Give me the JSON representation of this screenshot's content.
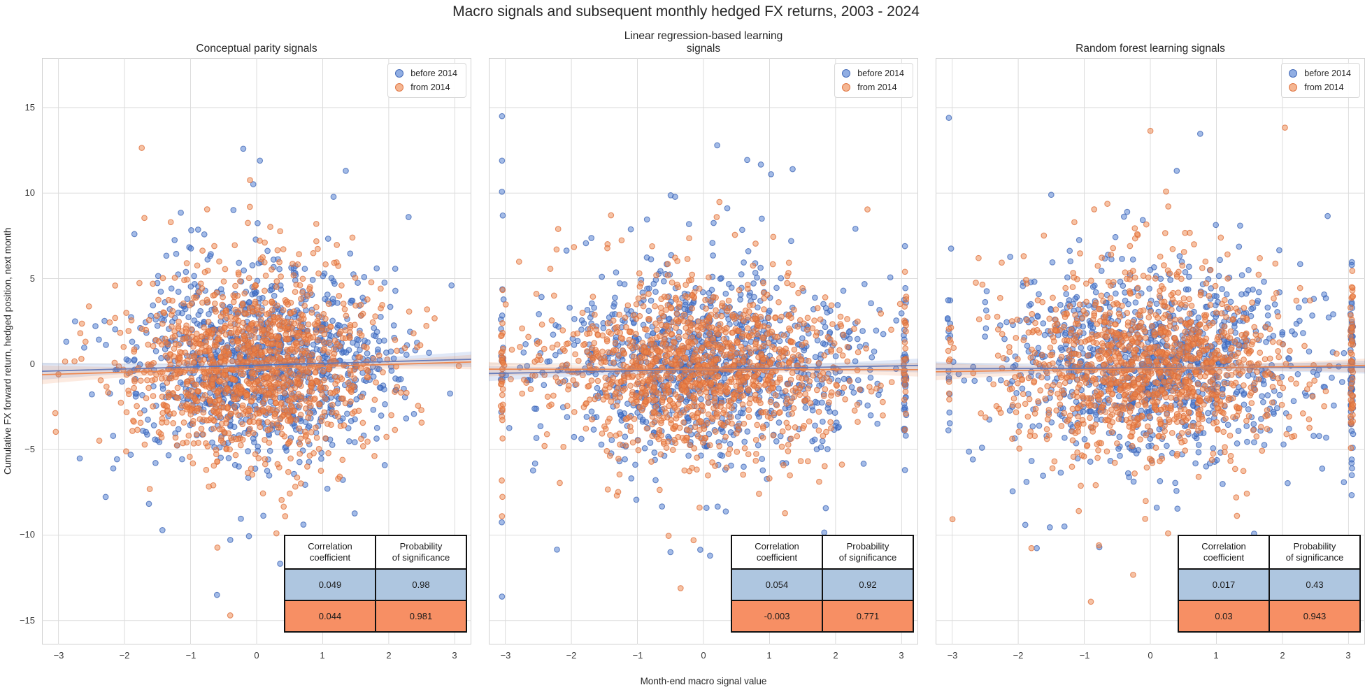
{
  "figure": {
    "title": "Macro signals and subsequent monthly hedged FX returns, 2003 - 2024",
    "xlabel": "Month-end macro signal value",
    "ylabel": "Cumulative FX forward return, hedged position, next month"
  },
  "colors": {
    "blue": "#4878d0",
    "blue_edge": "#3c64b4",
    "orange": "#ee854a",
    "orange_edge": "#de6e3a",
    "table_blue": "#aec6e0",
    "table_orange": "#f78f64",
    "grid": "#dcdcdc",
    "spine": "#d0d0d0"
  },
  "legend": {
    "items": [
      {
        "label": "before 2014",
        "series": "before 2014"
      },
      {
        "label": "from 2014",
        "series": "from 2014"
      }
    ]
  },
  "chart_data": [
    {
      "type": "scatter",
      "title": "Conceptual parity signals",
      "x_ticks": [
        -3,
        -2,
        -1,
        0,
        1,
        2,
        3
      ],
      "y_ticks": [
        15,
        10,
        5,
        0,
        -5,
        -10,
        -15
      ],
      "xlim": [
        -3.25,
        3.25
      ],
      "ylim": [
        -16.4,
        17.9
      ],
      "grid": true,
      "legend_position": "upper right",
      "series": [
        {
          "name": "before 2014",
          "color_key": "blue",
          "n": 1050,
          "gen": {
            "x_mean": 0.1,
            "x_sd": 0.98,
            "p_edge_lo": 0,
            "p_edge_hi": 0,
            "y_mean": 0.05,
            "y_sd_mix": [
              2.4,
              4.0,
              6.0
            ]
          },
          "outliers": [
            [
              0.05,
              11.9
            ],
            [
              1.35,
              11.3
            ],
            [
              2.3,
              8.6
            ],
            [
              -1.85,
              7.6
            ],
            [
              -0.6,
              -13.5
            ],
            [
              0.85,
              -11.6
            ],
            [
              1.1,
              -10.9
            ],
            [
              2.95,
              4.6
            ]
          ]
        },
        {
          "name": "from 2014",
          "color_key": "orange",
          "n": 1250,
          "gen": {
            "x_mean": -0.05,
            "x_sd": 0.95,
            "p_edge_lo": 0.001,
            "p_edge_hi": 0.001,
            "y_mean": -0.25,
            "y_sd_mix": [
              2.3,
              3.8,
              5.5
            ]
          },
          "outliers": [
            [
              -0.75,
              9.05
            ],
            [
              -1.3,
              8.3
            ],
            [
              1.45,
              7.4
            ],
            [
              -0.4,
              -14.7
            ],
            [
              0.3,
              -9.9
            ],
            [
              -3.0,
              -0.6
            ],
            [
              -2.9,
              0.15
            ]
          ]
        }
      ],
      "regression": [
        {
          "series": "before 2014",
          "color_key": "blue",
          "y_start": -0.42,
          "y_end": 0.28,
          "band_w_start": 0.5,
          "band_w_mid": 0.16,
          "band_w_end": 0.45
        },
        {
          "series": "from 2014",
          "color_key": "orange",
          "y_start": -0.62,
          "y_end": 0.12,
          "band_w_start": 0.55,
          "band_w_mid": 0.15,
          "band_w_end": 0.42
        }
      ],
      "table": {
        "headers": [
          "Correlation\ncoefficient",
          "Probability\nof significance"
        ],
        "rows": [
          {
            "series": "before 2014",
            "values": [
              "0.049",
              "0.98"
            ]
          },
          {
            "series": "from 2014",
            "values": [
              "0.044",
              "0.981"
            ]
          }
        ]
      }
    },
    {
      "type": "scatter",
      "title": "Linear regression-based learning\nsignals",
      "x_ticks": [
        -3,
        -2,
        -1,
        0,
        1,
        2,
        3
      ],
      "y_ticks": [
        15,
        10,
        5,
        0,
        -5,
        -10,
        -15
      ],
      "xlim": [
        -3.25,
        3.25
      ],
      "ylim": [
        -16.4,
        17.9
      ],
      "grid": true,
      "legend_position": "upper right",
      "series": [
        {
          "name": "before 2014",
          "color_key": "blue",
          "n": 1050,
          "gen": {
            "x_mean": 0.0,
            "x_sd": 1.2,
            "p_edge_lo": 0.02,
            "p_edge_hi": 0.03,
            "y_mean": 0.0,
            "y_sd_mix": [
              2.5,
              4.2,
              6.2
            ]
          },
          "outliers": [
            [
              -3.05,
              14.5
            ],
            [
              -3.05,
              11.9
            ],
            [
              1.35,
              11.4
            ],
            [
              -3.05,
              -13.6
            ],
            [
              -0.5,
              -11.0
            ],
            [
              0.7,
              -10.4
            ],
            [
              3.05,
              6.9
            ],
            [
              3.05,
              -6.2
            ]
          ]
        },
        {
          "name": "from 2014",
          "color_key": "orange",
          "n": 1250,
          "gen": {
            "x_mean": -0.05,
            "x_sd": 1.15,
            "p_edge_lo": 0.025,
            "p_edge_hi": 0.02,
            "y_mean": -0.3,
            "y_sd_mix": [
              2.3,
              3.8,
              5.2
            ]
          },
          "outliers": [
            [
              -1.4,
              8.7
            ],
            [
              0.2,
              8.6
            ],
            [
              -2.2,
              7.9
            ],
            [
              -0.15,
              -10.3
            ],
            [
              -3.05,
              -8.9
            ],
            [
              3.05,
              5.4
            ]
          ]
        }
      ],
      "regression": [
        {
          "series": "before 2014",
          "color_key": "blue",
          "y_start": -0.55,
          "y_end": -0.08,
          "band_w_start": 0.45,
          "band_w_mid": 0.15,
          "band_w_end": 0.4
        },
        {
          "series": "from 2014",
          "color_key": "orange",
          "y_start": -0.3,
          "y_end": -0.33,
          "band_w_start": 0.42,
          "band_w_mid": 0.14,
          "band_w_end": 0.4
        }
      ],
      "table": {
        "headers": [
          "Correlation\ncoefficient",
          "Probability\nof significance"
        ],
        "rows": [
          {
            "series": "before 2014",
            "values": [
              "0.054",
              "0.92"
            ]
          },
          {
            "series": "from 2014",
            "values": [
              "-0.003",
              "0.771"
            ]
          }
        ]
      }
    },
    {
      "type": "scatter",
      "title": "Random forest learning signals",
      "x_ticks": [
        -3,
        -2,
        -1,
        0,
        1,
        2,
        3
      ],
      "y_ticks": [
        15,
        10,
        5,
        0,
        -5,
        -10,
        -15
      ],
      "xlim": [
        -3.25,
        3.25
      ],
      "ylim": [
        -16.4,
        17.9
      ],
      "grid": true,
      "legend_position": "upper right",
      "series": [
        {
          "name": "before 2014",
          "color_key": "blue",
          "n": 1050,
          "gen": {
            "x_mean": 0.05,
            "x_sd": 1.15,
            "p_edge_lo": 0.01,
            "p_edge_hi": 0.05,
            "y_mean": 0.0,
            "y_sd_mix": [
              2.5,
              4.2,
              6.2
            ]
          },
          "outliers": [
            [
              -3.05,
              14.4
            ],
            [
              0.4,
              11.3
            ],
            [
              -1.5,
              9.9
            ],
            [
              -0.35,
              8.9
            ],
            [
              0.5,
              -10.9
            ],
            [
              -1.3,
              -9.5
            ],
            [
              3.05,
              5.8
            ],
            [
              3.05,
              -6.5
            ]
          ]
        },
        {
          "name": "from 2014",
          "color_key": "orange",
          "n": 1250,
          "gen": {
            "x_mean": -0.05,
            "x_sd": 1.05,
            "p_edge_lo": 0.008,
            "p_edge_hi": 0.04,
            "y_mean": -0.25,
            "y_sd_mix": [
              2.3,
              3.8,
              5.2
            ]
          },
          "outliers": [
            [
              -0.85,
              9.05
            ],
            [
              -1.15,
              8.3
            ],
            [
              -2.6,
              6.2
            ],
            [
              -0.9,
              -13.9
            ],
            [
              1.3,
              -7.8
            ],
            [
              3.05,
              4.5
            ]
          ]
        }
      ],
      "regression": [
        {
          "series": "before 2014",
          "color_key": "blue",
          "y_start": -0.28,
          "y_end": -0.18,
          "band_w_start": 0.42,
          "band_w_mid": 0.15,
          "band_w_end": 0.38
        },
        {
          "series": "from 2014",
          "color_key": "orange",
          "y_start": -0.45,
          "y_end": -0.08,
          "band_w_start": 0.5,
          "band_w_mid": 0.15,
          "band_w_end": 0.4
        }
      ],
      "table": {
        "headers": [
          "Correlation\ncoefficient",
          "Probability\nof significance"
        ],
        "rows": [
          {
            "series": "before 2014",
            "values": [
              "0.017",
              "0.43"
            ]
          },
          {
            "series": "from 2014",
            "values": [
              "0.03",
              "0.943"
            ]
          }
        ]
      }
    }
  ]
}
